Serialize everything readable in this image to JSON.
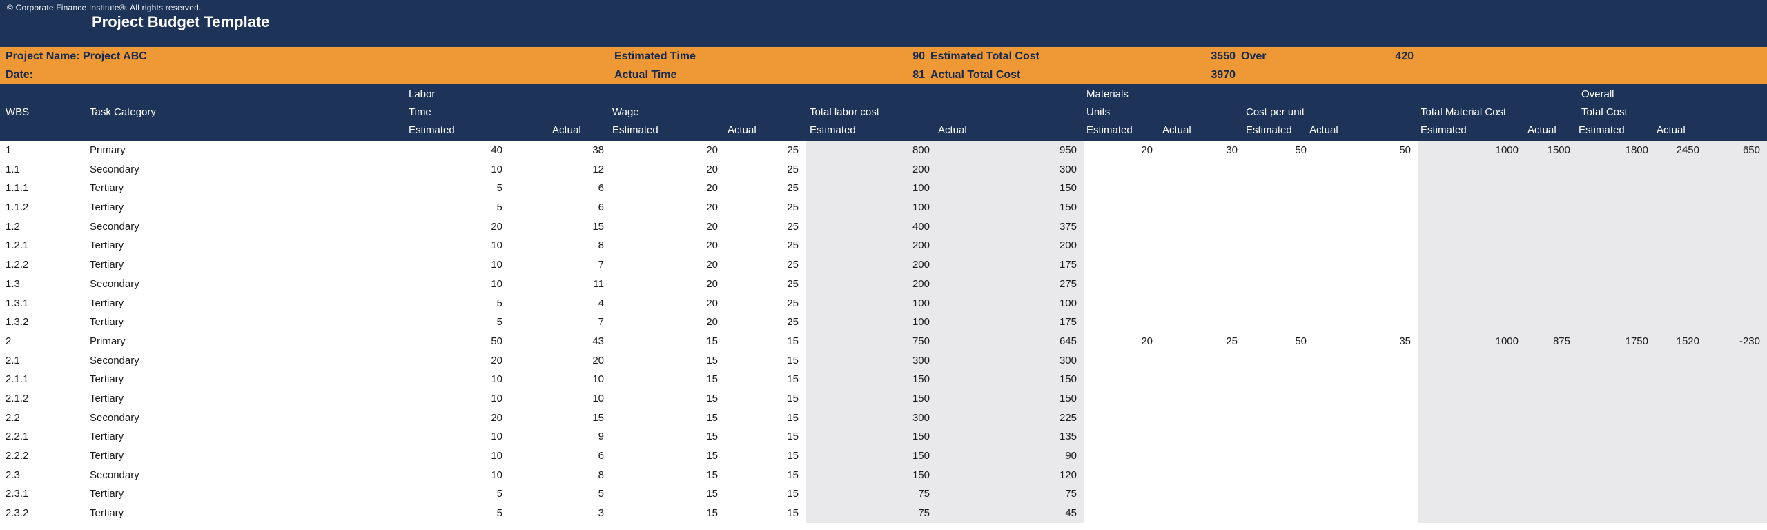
{
  "banner": {
    "copyright": "© Corporate Finance Institute®. All rights reserved.",
    "title": "Project Budget Template"
  },
  "info_bar": {
    "project_name": "Project Name: Project ABC",
    "date_label": "Date:",
    "estimated_time_label": "Estimated Time",
    "estimated_time_value": "90",
    "estimated_total_cost_label": "Estimated Total Cost",
    "estimated_total_cost_value": "3550",
    "over_label": "Over",
    "over_value": "420",
    "actual_time_label": "Actual Time",
    "actual_time_value": "81",
    "actual_total_cost_label": "Actual Total Cost",
    "actual_total_cost_value": "3970"
  },
  "table": {
    "group_headers": {
      "labor_line1": "Labor",
      "labor_line2": "Time",
      "wage": "Wage",
      "total_labor_cost": "Total labor cost",
      "materials_line1": "Materials",
      "materials_line2": "Units",
      "cost_per_unit": "Cost per unit",
      "total_material_cost": "Total Material Cost",
      "overall_line1": "Overall",
      "overall_line2": "Total Cost"
    },
    "column_headers": {
      "wbs": "WBS",
      "task_category": "Task Category"
    },
    "sub": {
      "estimated": "Estimated",
      "actual": "Actual"
    },
    "rows": [
      [
        "1",
        "Primary",
        "40",
        "38",
        "20",
        "25",
        "800",
        "950",
        "20",
        "30",
        "50",
        "50",
        "1000",
        "1500",
        "1800",
        "2450",
        "650"
      ],
      [
        "1.1",
        "Secondary",
        "10",
        "12",
        "20",
        "25",
        "200",
        "300",
        "",
        "",
        "",
        "",
        "",
        "",
        "",
        "",
        ""
      ],
      [
        "1.1.1",
        "Tertiary",
        "5",
        "6",
        "20",
        "25",
        "100",
        "150",
        "",
        "",
        "",
        "",
        "",
        "",
        "",
        "",
        ""
      ],
      [
        "1.1.2",
        "Tertiary",
        "5",
        "6",
        "20",
        "25",
        "100",
        "150",
        "",
        "",
        "",
        "",
        "",
        "",
        "",
        "",
        ""
      ],
      [
        "1.2",
        "Secondary",
        "20",
        "15",
        "20",
        "25",
        "400",
        "375",
        "",
        "",
        "",
        "",
        "",
        "",
        "",
        "",
        ""
      ],
      [
        "1.2.1",
        "Tertiary",
        "10",
        "8",
        "20",
        "25",
        "200",
        "200",
        "",
        "",
        "",
        "",
        "",
        "",
        "",
        "",
        ""
      ],
      [
        "1.2.2",
        "Tertiary",
        "10",
        "7",
        "20",
        "25",
        "200",
        "175",
        "",
        "",
        "",
        "",
        "",
        "",
        "",
        "",
        ""
      ],
      [
        "1.3",
        "Secondary",
        "10",
        "11",
        "20",
        "25",
        "200",
        "275",
        "",
        "",
        "",
        "",
        "",
        "",
        "",
        "",
        ""
      ],
      [
        "1.3.1",
        "Tertiary",
        "5",
        "4",
        "20",
        "25",
        "100",
        "100",
        "",
        "",
        "",
        "",
        "",
        "",
        "",
        "",
        ""
      ],
      [
        "1.3.2",
        "Tertiary",
        "5",
        "7",
        "20",
        "25",
        "100",
        "175",
        "",
        "",
        "",
        "",
        "",
        "",
        "",
        "",
        ""
      ],
      [
        "2",
        "Primary",
        "50",
        "43",
        "15",
        "15",
        "750",
        "645",
        "20",
        "25",
        "50",
        "35",
        "1000",
        "875",
        "1750",
        "1520",
        "-230"
      ],
      [
        "2.1",
        "Secondary",
        "20",
        "20",
        "15",
        "15",
        "300",
        "300",
        "",
        "",
        "",
        "",
        "",
        "",
        "",
        "",
        ""
      ],
      [
        "2.1.1",
        "Tertiary",
        "10",
        "10",
        "15",
        "15",
        "150",
        "150",
        "",
        "",
        "",
        "",
        "",
        "",
        "",
        "",
        ""
      ],
      [
        "2.1.2",
        "Tertiary",
        "10",
        "10",
        "15",
        "15",
        "150",
        "150",
        "",
        "",
        "",
        "",
        "",
        "",
        "",
        "",
        ""
      ],
      [
        "2.2",
        "Secondary",
        "20",
        "15",
        "15",
        "15",
        "300",
        "225",
        "",
        "",
        "",
        "",
        "",
        "",
        "",
        "",
        ""
      ],
      [
        "2.2.1",
        "Tertiary",
        "10",
        "9",
        "15",
        "15",
        "150",
        "135",
        "",
        "",
        "",
        "",
        "",
        "",
        "",
        "",
        ""
      ],
      [
        "2.2.2",
        "Tertiary",
        "10",
        "6",
        "15",
        "15",
        "150",
        "90",
        "",
        "",
        "",
        "",
        "",
        "",
        "",
        "",
        ""
      ],
      [
        "2.3",
        "Secondary",
        "10",
        "8",
        "15",
        "15",
        "150",
        "120",
        "",
        "",
        "",
        "",
        "",
        "",
        "",
        "",
        ""
      ],
      [
        "2.3.1",
        "Tertiary",
        "5",
        "5",
        "15",
        "15",
        "75",
        "75",
        "",
        "",
        "",
        "",
        "",
        "",
        "",
        "",
        ""
      ],
      [
        "2.3.2",
        "Tertiary",
        "5",
        "3",
        "15",
        "15",
        "75",
        "45",
        "",
        "",
        "",
        "",
        "",
        "",
        "",
        "",
        ""
      ]
    ]
  },
  "colors": {
    "navy": "#1d3458",
    "orange": "#ee9935",
    "gray_band": "#e9e9eb"
  }
}
